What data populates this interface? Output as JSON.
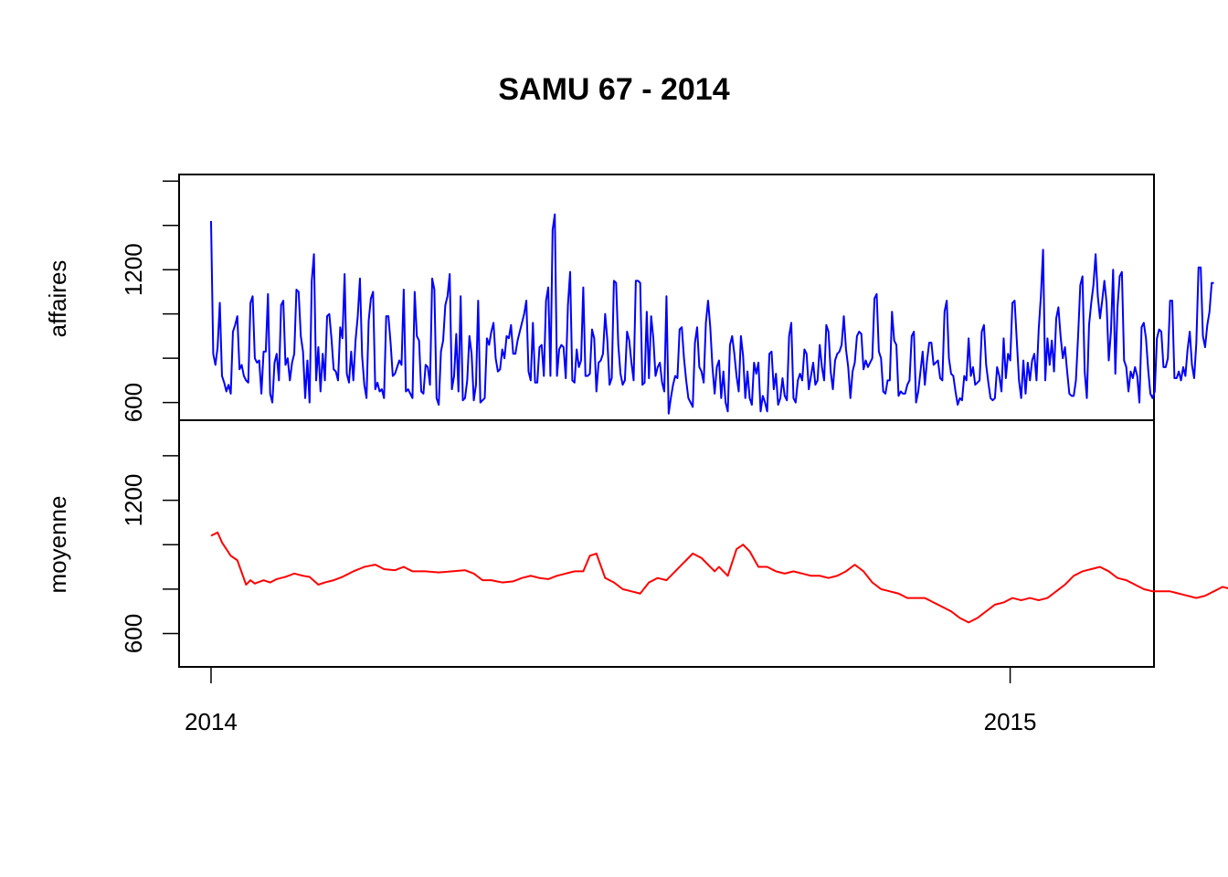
{
  "chart_data": {
    "type": "line",
    "title": "SAMU 67 - 2014",
    "x_axis": {
      "range": [
        2013.96,
        2015.18
      ],
      "ticks": [
        {
          "value": 2014,
          "label": "2014"
        },
        {
          "value": 2015,
          "label": "2015"
        }
      ]
    },
    "panels": [
      {
        "name": "affaires",
        "ylabel": "affaires",
        "color": "#0000ff",
        "ylim": [
          520,
          1630
        ],
        "yticks": [
          {
            "value": 600,
            "label": "600"
          },
          {
            "value": 800,
            "label": ""
          },
          {
            "value": 1000,
            "label": ""
          },
          {
            "value": 1200,
            "label": "1200"
          },
          {
            "value": 1400,
            "label": ""
          },
          {
            "value": 1600,
            "label": ""
          }
        ],
        "series": {
          "x_start": 2014.0,
          "x_step": 0.00274,
          "values": [
            1420,
            820,
            770,
            850,
            1050,
            720,
            690,
            650,
            680,
            640,
            920,
            950,
            990,
            750,
            770,
            720,
            700,
            690,
            1050,
            1080,
            800,
            780,
            790,
            640,
            830,
            830,
            1090,
            640,
            600,
            780,
            820,
            700,
            1040,
            1060,
            770,
            800,
            700,
            780,
            820,
            1110,
            1100,
            900,
            830,
            620,
            790,
            600,
            1150,
            1270,
            700,
            850,
            650,
            820,
            700,
            990,
            1000,
            890,
            750,
            740,
            700,
            940,
            890,
            1180,
            730,
            690,
            830,
            700,
            880,
            990,
            1160,
            810,
            680,
            620,
            970,
            1070,
            1100,
            660,
            690,
            650,
            660,
            620,
            990,
            990,
            870,
            720,
            730,
            760,
            790,
            770,
            1110,
            650,
            660,
            640,
            620,
            1100,
            900,
            880,
            650,
            640,
            770,
            760,
            680,
            1160,
            1110,
            620,
            590,
            830,
            880,
            1040,
            1080,
            1180,
            660,
            720,
            910,
            650,
            1080,
            610,
            620,
            700,
            900,
            820,
            610,
            680,
            1060,
            600,
            610,
            620,
            890,
            860,
            920,
            960,
            800,
            740,
            750,
            840,
            800,
            900,
            890,
            950,
            820,
            820,
            880,
            920,
            960,
            1000,
            1060,
            740,
            700,
            960,
            690,
            690,
            850,
            860,
            720,
            1060,
            1120,
            720,
            1380,
            1450,
            720,
            840,
            860,
            850,
            710,
            1040,
            1190,
            700,
            690,
            840,
            760,
            790,
            1120,
            720,
            720,
            730,
            930,
            890,
            650,
            780,
            790,
            820,
            1000,
            880,
            680,
            710,
            1150,
            1140,
            860,
            730,
            680,
            700,
            920,
            880,
            780,
            700,
            1150,
            1150,
            1140,
            680,
            690,
            1010,
            710,
            990,
            890,
            720,
            760,
            780,
            690,
            650,
            1080,
            550,
            620,
            680,
            720,
            710,
            930,
            940,
            800,
            700,
            620,
            600,
            580,
            870,
            940,
            760,
            740,
            690,
            960,
            1060,
            940,
            760,
            640,
            760,
            790,
            620,
            740,
            600,
            560,
            860,
            900,
            820,
            720,
            650,
            900,
            810,
            620,
            740,
            620,
            590,
            780,
            730,
            780,
            560,
            630,
            600,
            560,
            820,
            830,
            660,
            730,
            590,
            620,
            710,
            630,
            610,
            900,
            960,
            620,
            600,
            700,
            730,
            700,
            840,
            820,
            660,
            720,
            780,
            680,
            700,
            860,
            760,
            700,
            950,
            920,
            740,
            660,
            790,
            820,
            830,
            860,
            990,
            840,
            760,
            620,
            740,
            780,
            900,
            920,
            910,
            750,
            790,
            760,
            780,
            800,
            1070,
            1090,
            830,
            800,
            650,
            640,
            700,
            700,
            1010,
            880,
            860,
            630,
            650,
            640,
            640,
            680,
            700,
            900,
            920,
            600,
            650,
            740,
            830,
            680,
            790,
            870,
            870,
            770,
            780,
            790,
            710,
            700,
            1010,
            1060,
            800,
            730,
            720,
            650,
            590,
            620,
            610,
            720,
            700,
            890,
            720,
            760,
            680,
            690,
            700,
            920,
            950,
            770,
            690,
            620,
            610,
            620,
            760,
            720,
            650,
            890,
            710,
            820,
            790,
            1050,
            1060,
            880,
            700,
            620,
            790,
            640,
            780,
            700,
            790,
            820,
            700,
            930,
            1080,
            1290,
            700,
            890,
            770,
            880,
            740,
            980,
            1030,
            900,
            800,
            850,
            740,
            640,
            630,
            630,
            700,
            900,
            1130,
            1170,
            740,
            620,
            950,
            1050,
            1130,
            1270,
            1080,
            980,
            1060,
            1150,
            1050,
            790,
            920,
            1200,
            730,
            1030,
            1170,
            1190,
            790,
            760,
            650,
            740,
            710,
            760,
            720,
            600,
            940,
            960,
            890,
            750,
            640,
            620,
            650,
            890,
            930,
            920,
            760,
            760,
            800,
            1060,
            1060,
            710,
            710,
            740,
            700,
            760,
            720,
            840,
            920,
            770,
            710,
            870,
            1210,
            1210,
            900,
            850,
            950,
            1010,
            1140,
            1140
          ],
          "note_values_stand_in": true
        }
      },
      {
        "name": "moyenne",
        "ylabel": "moyenne",
        "color": "#ff0000",
        "ylim": [
          450,
          1560
        ],
        "yticks": [
          {
            "value": 600,
            "label": "600"
          },
          {
            "value": 800,
            "label": ""
          },
          {
            "value": 1000,
            "label": ""
          },
          {
            "value": 1200,
            "label": "1200"
          },
          {
            "value": 1400,
            "label": ""
          }
        ],
        "series": {
          "x_start": 2014.0,
          "x_step": 0.00274,
          "anchors": [
            [
              0,
              1040
            ],
            [
              3,
              1055
            ],
            [
              5,
              1010
            ],
            [
              9,
              950
            ],
            [
              12,
              930
            ],
            [
              16,
              820
            ],
            [
              18,
              840
            ],
            [
              20,
              825
            ],
            [
              24,
              840
            ],
            [
              27,
              830
            ],
            [
              30,
              845
            ],
            [
              34,
              855
            ],
            [
              38,
              870
            ],
            [
              42,
              860
            ],
            [
              45,
              855
            ],
            [
              49,
              820
            ],
            [
              52,
              830
            ],
            [
              56,
              840
            ],
            [
              60,
              855
            ],
            [
              65,
              880
            ],
            [
              70,
              900
            ],
            [
              75,
              910
            ],
            [
              79,
              890
            ],
            [
              84,
              885
            ],
            [
              88,
              900
            ],
            [
              92,
              880
            ],
            [
              98,
              880
            ],
            [
              104,
              875
            ],
            [
              110,
              880
            ],
            [
              116,
              885
            ],
            [
              120,
              870
            ],
            [
              124,
              840
            ],
            [
              128,
              840
            ],
            [
              133,
              830
            ],
            [
              138,
              835
            ],
            [
              142,
              850
            ],
            [
              146,
              860
            ],
            [
              150,
              850
            ],
            [
              154,
              845
            ],
            [
              158,
              860
            ],
            [
              162,
              870
            ],
            [
              166,
              880
            ],
            [
              170,
              880
            ],
            [
              173,
              950
            ],
            [
              176,
              960
            ],
            [
              180,
              850
            ],
            [
              184,
              830
            ],
            [
              188,
              800
            ],
            [
              192,
              790
            ],
            [
              196,
              780
            ],
            [
              200,
              830
            ],
            [
              204,
              850
            ],
            [
              208,
              840
            ],
            [
              212,
              880
            ],
            [
              216,
              920
            ],
            [
              220,
              960
            ],
            [
              224,
              940
            ],
            [
              228,
              900
            ],
            [
              230,
              880
            ],
            [
              232,
              900
            ],
            [
              236,
              860
            ],
            [
              240,
              980
            ],
            [
              243,
              1000
            ],
            [
              246,
              970
            ],
            [
              250,
              900
            ],
            [
              254,
              900
            ],
            [
              258,
              880
            ],
            [
              262,
              870
            ],
            [
              266,
              880
            ],
            [
              270,
              870
            ],
            [
              274,
              860
            ],
            [
              278,
              860
            ],
            [
              282,
              850
            ],
            [
              286,
              860
            ],
            [
              290,
              880
            ],
            [
              294,
              910
            ],
            [
              298,
              880
            ],
            [
              302,
              830
            ],
            [
              306,
              800
            ],
            [
              310,
              790
            ],
            [
              314,
              780
            ],
            [
              318,
              760
            ],
            [
              322,
              760
            ],
            [
              326,
              760
            ],
            [
              330,
              740
            ],
            [
              334,
              720
            ],
            [
              338,
              700
            ],
            [
              342,
              670
            ],
            [
              346,
              650
            ],
            [
              350,
              670
            ],
            [
              354,
              700
            ],
            [
              358,
              730
            ],
            [
              362,
              740
            ],
            [
              366,
              760
            ],
            [
              370,
              750
            ],
            [
              374,
              760
            ],
            [
              378,
              750
            ],
            [
              382,
              760
            ],
            [
              386,
              790
            ],
            [
              390,
              820
            ],
            [
              394,
              860
            ],
            [
              398,
              880
            ],
            [
              402,
              890
            ],
            [
              406,
              900
            ],
            [
              410,
              880
            ],
            [
              414,
              850
            ],
            [
              418,
              840
            ],
            [
              422,
              820
            ],
            [
              426,
              800
            ],
            [
              430,
              790
            ],
            [
              434,
              790
            ],
            [
              438,
              790
            ],
            [
              442,
              780
            ],
            [
              446,
              770
            ],
            [
              450,
              760
            ],
            [
              454,
              770
            ],
            [
              458,
              790
            ],
            [
              462,
              810
            ],
            [
              466,
              800
            ],
            [
              470,
              790
            ],
            [
              474,
              780
            ],
            [
              478,
              770
            ],
            [
              482,
              760
            ],
            [
              486,
              740
            ],
            [
              490,
              720
            ],
            [
              494,
              700
            ],
            [
              498,
              710
            ],
            [
              502,
              720
            ],
            [
              506,
              760
            ],
            [
              510,
              800
            ],
            [
              514,
              850
            ],
            [
              518,
              900
            ],
            [
              522,
              920
            ],
            [
              526,
              900
            ],
            [
              530,
              880
            ],
            [
              534,
              870
            ],
            [
              538,
              880
            ],
            [
              542,
              900
            ],
            [
              546,
              960
            ],
            [
              549,
              1060
            ],
            [
              552,
              1130
            ],
            [
              554,
              1150
            ],
            [
              556,
              1100
            ],
            [
              559,
              1000
            ],
            [
              562,
              960
            ],
            [
              566,
              860
            ],
            [
              570,
              840
            ],
            [
              574,
              830
            ],
            [
              578,
              840
            ],
            [
              582,
              850
            ],
            [
              586,
              880
            ],
            [
              590,
              900
            ],
            [
              594,
              950
            ],
            [
              598,
              960
            ],
            [
              601,
              965
            ]
          ],
          "note_values_stand_in": true
        }
      }
    ]
  }
}
